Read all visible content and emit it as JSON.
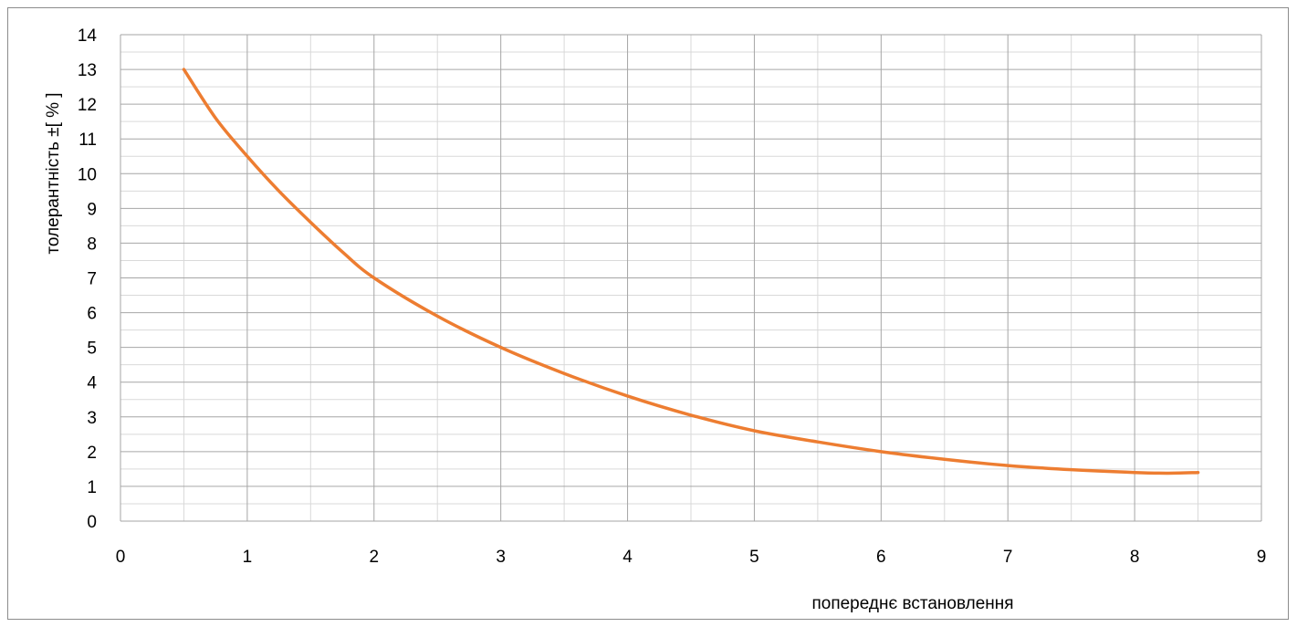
{
  "chart_data": {
    "type": "line",
    "title": "",
    "xlabel": "попереднє встановлення",
    "ylabel": "толерантність ±[ % ]",
    "xlim": [
      0,
      9
    ],
    "ylim": [
      0,
      14
    ],
    "x_ticks": [
      0,
      1,
      2,
      3,
      4,
      5,
      6,
      7,
      8,
      9
    ],
    "y_ticks": [
      0,
      1,
      2,
      3,
      4,
      5,
      6,
      7,
      8,
      9,
      10,
      11,
      12,
      13,
      14
    ],
    "x_minor_step": 0.5,
    "y_minor_step": 0.5,
    "grid": true,
    "legend": "none",
    "series": [
      {
        "color": "#ed7d31",
        "x": [
          0.5,
          0.75,
          1,
          1.25,
          1.5,
          1.75,
          2,
          2.5,
          3,
          3.5,
          4,
          4.5,
          5,
          5.5,
          6,
          6.5,
          7,
          7.5,
          8,
          8.25,
          8.5
        ],
        "y": [
          13.0,
          11.6,
          10.5,
          9.5,
          8.6,
          7.75,
          7.0,
          5.9,
          5.0,
          4.25,
          3.6,
          3.05,
          2.6,
          2.28,
          2.0,
          1.78,
          1.6,
          1.48,
          1.4,
          1.38,
          1.4
        ]
      }
    ]
  }
}
